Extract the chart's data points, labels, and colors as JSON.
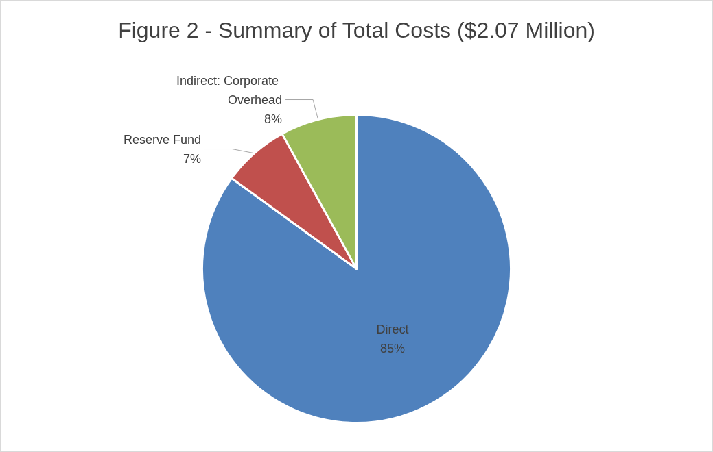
{
  "chart_data": {
    "type": "pie",
    "title": "Figure 2 - Summary of Total Costs ($2.07 Million)",
    "categories": [
      "Direct",
      "Reserve Fund",
      "Indirect: Corporate Overhead"
    ],
    "values": [
      85,
      7,
      8
    ],
    "colors": [
      "#4f81bd",
      "#c0504d",
      "#9bbb59"
    ],
    "value_labels": [
      "85%",
      "7%",
      "8%"
    ],
    "legend": false
  }
}
